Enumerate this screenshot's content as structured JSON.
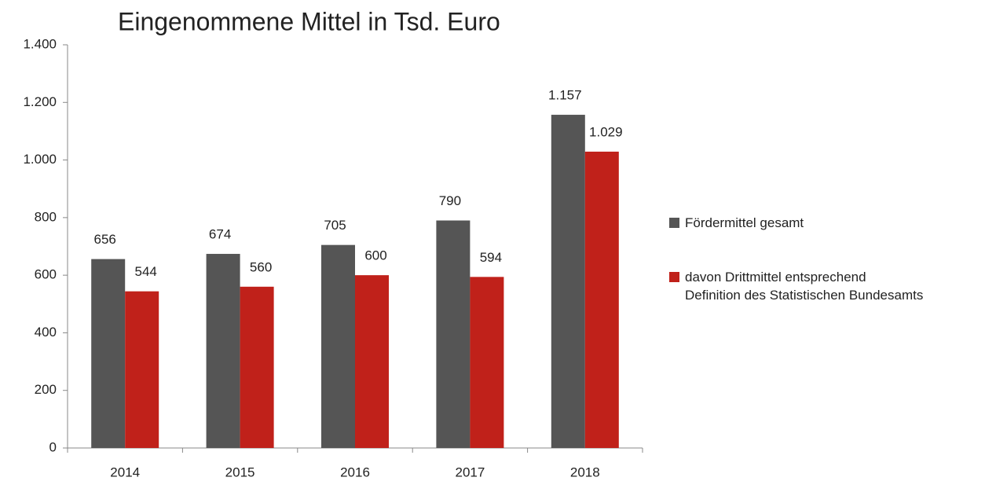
{
  "chart_data": {
    "type": "bar",
    "title": "Eingenommene Mittel in Tsd. Euro",
    "categories": [
      "2014",
      "2015",
      "2016",
      "2017",
      "2018"
    ],
    "series": [
      {
        "name": "Fördermittel gesamt",
        "color": "#555555",
        "values": [
          656,
          674,
          705,
          790,
          1157
        ],
        "value_labels": [
          "656",
          "674",
          "705",
          "790",
          "1.157"
        ]
      },
      {
        "name": "davon Drittmittel entsprechend\nDefinition des Statistischen Bundesamts",
        "color": "#c0211a",
        "values": [
          544,
          560,
          600,
          594,
          1029
        ],
        "value_labels": [
          "544",
          "560",
          "600",
          "594",
          "1.029"
        ]
      }
    ],
    "ylim": [
      0,
      1400
    ],
    "yticks": [
      0,
      200,
      400,
      600,
      800,
      {
        "value": 1000,
        "label": "1.000"
      },
      {
        "value": 1200,
        "label": "1.200"
      },
      {
        "value": 1400,
        "label": "1.400"
      }
    ],
    "legend": "right"
  }
}
